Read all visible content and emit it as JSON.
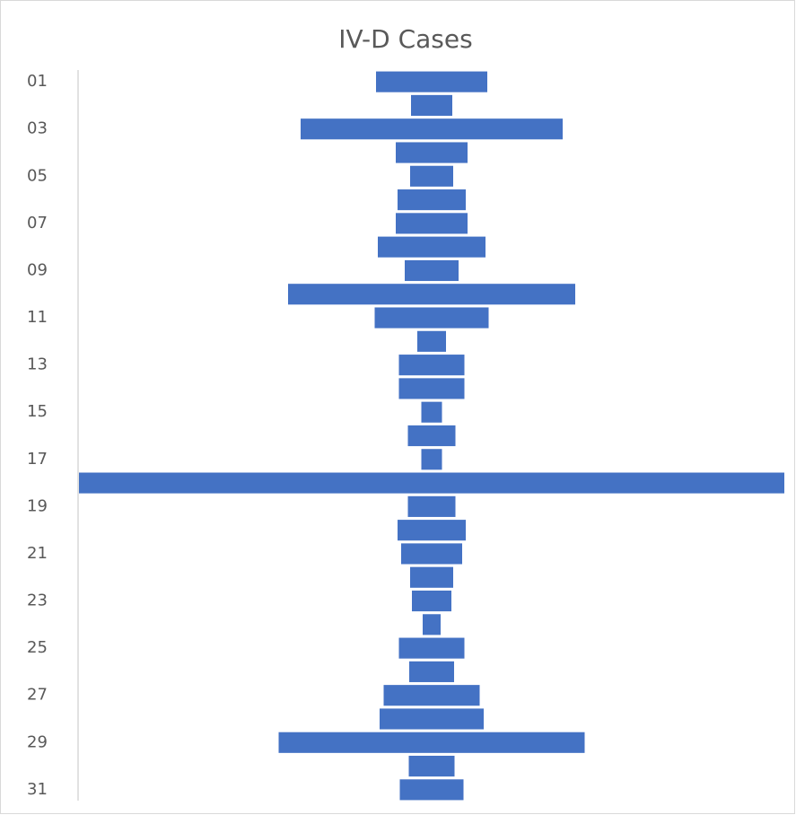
{
  "chart_data": {
    "type": "funnel",
    "title": "IV-D Cases",
    "categories": [
      "01",
      null,
      "03",
      null,
      "05",
      null,
      "07",
      null,
      "09",
      null,
      "11",
      null,
      "13",
      null,
      "15",
      null,
      "17",
      null,
      "19",
      null,
      "21",
      null,
      "23",
      null,
      "25",
      null,
      "27",
      null,
      "29",
      null,
      "31"
    ],
    "values": [
      124,
      46,
      292,
      80,
      48,
      76,
      80,
      120,
      60,
      320,
      127,
      32,
      73,
      73,
      23,
      53,
      23,
      786,
      53,
      76,
      68,
      48,
      44,
      20,
      73,
      50,
      107,
      116,
      341,
      51,
      71
    ],
    "color": "#4472c4"
  }
}
